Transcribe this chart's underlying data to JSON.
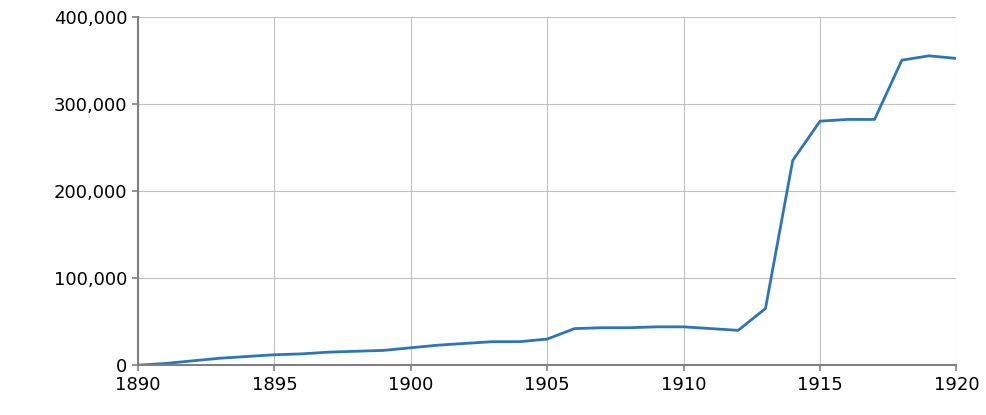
{
  "x": [
    1890,
    1891,
    1892,
    1893,
    1894,
    1895,
    1896,
    1897,
    1898,
    1899,
    1900,
    1901,
    1902,
    1903,
    1904,
    1905,
    1906,
    1907,
    1908,
    1909,
    1910,
    1911,
    1912,
    1913,
    1914,
    1915,
    1916,
    1917,
    1918,
    1919,
    1920
  ],
  "y": [
    0,
    2000,
    5000,
    8000,
    10000,
    12000,
    13000,
    15000,
    16000,
    17000,
    20000,
    23000,
    25000,
    27000,
    27000,
    30000,
    42000,
    43000,
    43000,
    44000,
    44000,
    42000,
    40000,
    65000,
    235000,
    280000,
    282000,
    282000,
    350000,
    355000,
    352000
  ],
  "line_color": "#2e75b6",
  "line_width": 2.0,
  "xlim": [
    1890,
    1920
  ],
  "ylim": [
    0,
    400000
  ],
  "xticks": [
    1890,
    1895,
    1900,
    1905,
    1910,
    1915,
    1920
  ],
  "yticks": [
    0,
    100000,
    200000,
    300000,
    400000
  ],
  "grid": true,
  "background_color": "#ffffff",
  "plot_area_color": "#ffffff",
  "tick_label_fontsize": 13,
  "spine_color": "#808080",
  "grid_color": "#c0c0c0"
}
